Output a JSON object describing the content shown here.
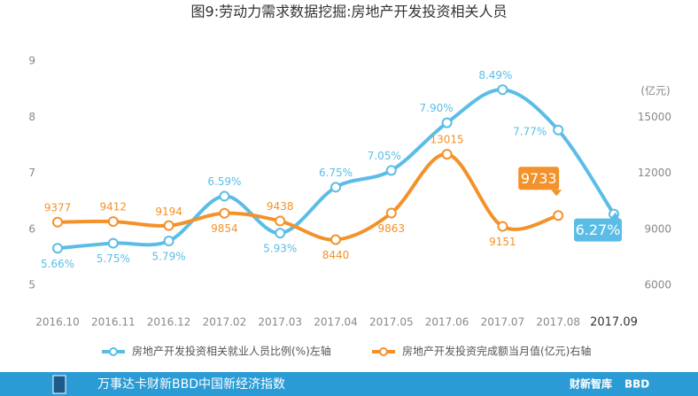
{
  "chart_data": {
    "type": "line",
    "title": "图9:劳动力需求数据挖掘:房地产开发投资相关人员",
    "categories": [
      "2016.10",
      "2016.11",
      "2016.12",
      "2017.02",
      "2017.03",
      "2017.04",
      "2017.05",
      "2017.06",
      "2017.07",
      "2017.08",
      "2017.09"
    ],
    "series": [
      {
        "name": "房地产开发投资相关就业人员比例(%)左轴",
        "color": "#5bbde6",
        "axis": "y",
        "values": [
          5.66,
          5.75,
          5.79,
          6.59,
          5.93,
          6.75,
          7.05,
          7.9,
          8.49,
          7.77,
          6.27
        ],
        "value_labels": [
          "5.66%",
          "5.75%",
          "5.79%",
          "6.59%",
          "5.93%",
          "6.75%",
          "7.05%",
          "7.90%",
          "8.49%",
          "7.77%",
          "6.27%"
        ]
      },
      {
        "name": "房地产开发投资完成额当月值(亿元)右轴",
        "color": "#f3922a",
        "axis": "y2",
        "values": [
          9377,
          9412,
          9194,
          9854,
          9438,
          8440,
          9863,
          13015,
          9151,
          9733,
          null
        ]
      }
    ],
    "ylim": [
      5,
      9
    ],
    "yticks": [
      5,
      6,
      7,
      8,
      9
    ],
    "y2lim": [
      6000,
      18000
    ],
    "y2ticks": [
      6000,
      9000,
      12000,
      15000
    ],
    "y2_label": "(亿元)",
    "footer": {
      "title": "万事达卡财新BBD中国新经济指数",
      "brand1": "财新智库",
      "brand2": "BBD"
    }
  }
}
